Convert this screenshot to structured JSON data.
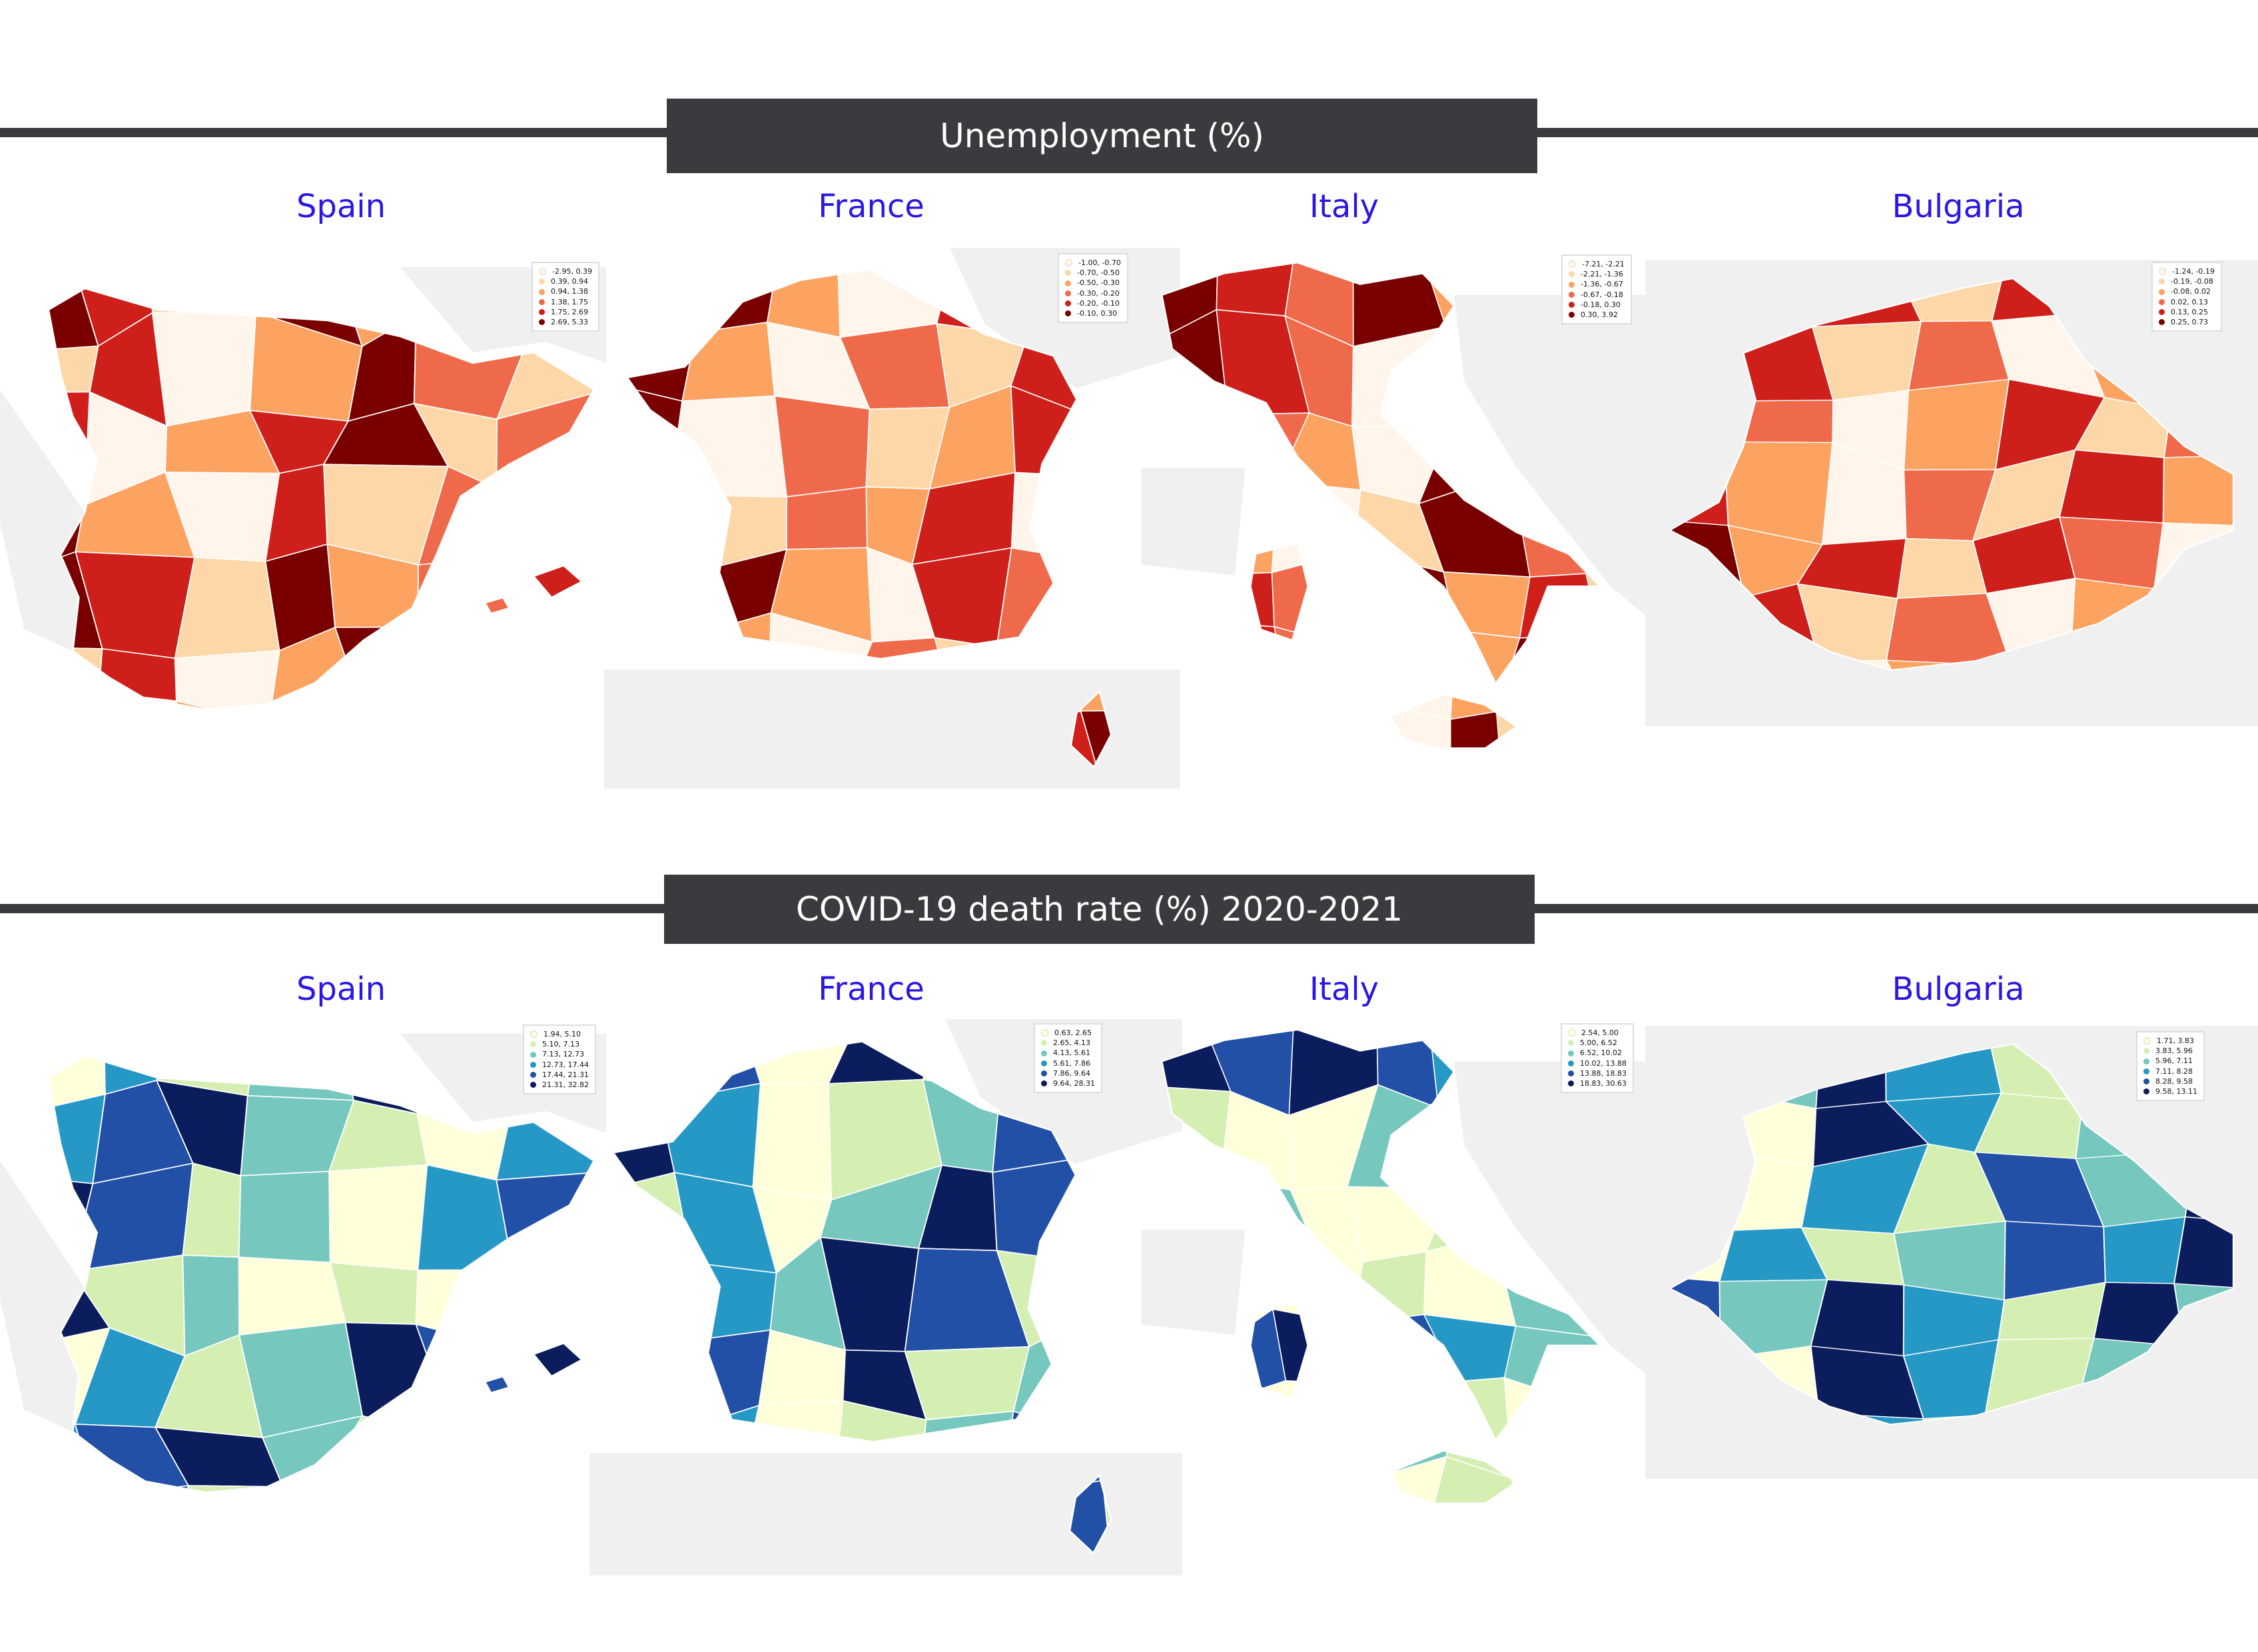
{
  "sections": [
    {
      "title": "Unemployment (%)",
      "palette": [
        "#fff5eb",
        "#fdd7a8",
        "#fca362",
        "#ef6a4a",
        "#cf1f1a",
        "#7a0000"
      ],
      "maps": [
        {
          "country": "Spain",
          "legend": [
            "-2.95,  0.39",
            "0.39,  0.94",
            "0.94,  1.38",
            "1.38,  1.75",
            "1.75,  2.69",
            "2.69,  5.33"
          ]
        },
        {
          "country": "France",
          "legend": [
            "-1.00, -0.70",
            "-0.70, -0.50",
            "-0.50, -0.30",
            "-0.30, -0.20",
            "-0.20, -0.10",
            "-0.10,  0.30"
          ]
        },
        {
          "country": "Italy",
          "legend": [
            "-7.21, -2.21",
            "-2.21, -1.36",
            "-1.36, -0.67",
            "-0.67, -0.18",
            "-0.18,  0.30",
            "0.30,  3.92"
          ]
        },
        {
          "country": "Bulgaria",
          "legend": [
            "-1.24, -0.19",
            "-0.19, -0.08",
            "-0.08,  0.02",
            "0.02,  0.13",
            "0.13,  0.25",
            "0.25,  0.73"
          ]
        }
      ]
    },
    {
      "title": "COVID-19 death rate (%) 2020-2021",
      "palette": [
        "#ffffd9",
        "#d5efb3",
        "#76c7bd",
        "#2698c5",
        "#2250a6",
        "#0b1d5c"
      ],
      "maps": [
        {
          "country": "Spain",
          "legend": [
            "1.94,  5.10",
            "5.10,  7.13",
            "7.13, 12.73",
            "12.73, 17.44",
            "17.44, 21.31",
            "21.31, 32.82"
          ]
        },
        {
          "country": "France",
          "legend": [
            "0.63,  2.65",
            "2.65,  4.13",
            "4.13,  5.61",
            "5.61,  7.86",
            "7.86,  9.64",
            "9.64, 28.31"
          ]
        },
        {
          "country": "Italy",
          "legend": [
            "2.54,  5.00",
            "5.00,  6.52",
            "6.52, 10.02",
            "10.02, 13.88",
            "13.88, 18.83",
            "18.83, 30.63"
          ]
        },
        {
          "country": "Bulgaria",
          "legend": [
            "1.71,  3.83",
            "3.83,  5.96",
            "5.96,  7.11",
            "7.11,  8.28",
            "8.28,  9.58",
            "9.58, 13.11"
          ]
        }
      ]
    }
  ],
  "colors": {
    "banner": "#3b3b3f",
    "country_label": "#2a16e6",
    "basemap": "#f0f0f0"
  }
}
